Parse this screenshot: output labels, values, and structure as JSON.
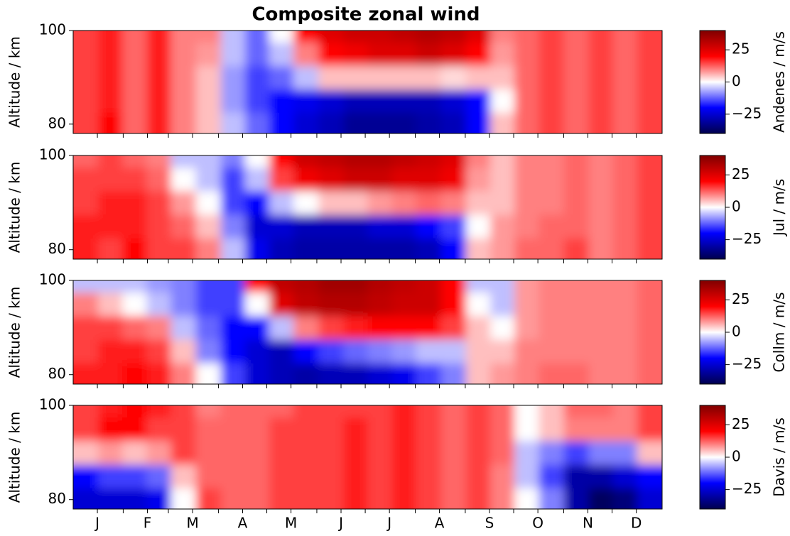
{
  "title": "Composite zonal wind",
  "chart_data": [
    {
      "type": "heatmap",
      "ylabel": "Altitude / km",
      "colorbar_label": "Andenes / m/s",
      "x": [
        8,
        23,
        38,
        53,
        68,
        84,
        99,
        114,
        129,
        144,
        160,
        175,
        190,
        205,
        220,
        236,
        251,
        266,
        281,
        296,
        312,
        327,
        342,
        357
      ],
      "y": [
        80,
        85,
        90,
        95,
        100
      ],
      "z": [
        [
          15,
          20,
          12,
          18,
          10,
          5,
          -5,
          -12,
          -20,
          -25,
          -28,
          -32,
          -32,
          -32,
          -30,
          -28,
          -20,
          5,
          12,
          15,
          12,
          15,
          12,
          15
        ],
        [
          15,
          18,
          12,
          18,
          10,
          5,
          -8,
          -15,
          -20,
          -22,
          -25,
          -28,
          -28,
          -28,
          -28,
          -25,
          -20,
          0,
          12,
          15,
          12,
          15,
          12,
          15
        ],
        [
          15,
          18,
          12,
          18,
          10,
          5,
          -8,
          -15,
          -12,
          -5,
          5,
          5,
          5,
          5,
          5,
          3,
          5,
          5,
          12,
          15,
          12,
          15,
          12,
          15
        ],
        [
          15,
          18,
          12,
          18,
          10,
          8,
          -5,
          -12,
          -5,
          10,
          20,
          22,
          25,
          25,
          28,
          25,
          20,
          8,
          12,
          15,
          12,
          15,
          12,
          15
        ],
        [
          15,
          18,
          12,
          18,
          10,
          10,
          -5,
          -12,
          0,
          20,
          25,
          28,
          28,
          30,
          32,
          30,
          25,
          10,
          12,
          15,
          12,
          15,
          12,
          15
        ]
      ],
      "xlim": [
        0,
        365
      ],
      "ylim": [
        78,
        100
      ],
      "yticks": [
        80,
        100
      ],
      "xticks": [
        15,
        46,
        74,
        105,
        135,
        166,
        196,
        227,
        258,
        288,
        319,
        349
      ],
      "xminorticks": [
        31,
        59,
        90,
        120,
        151,
        181,
        212,
        243,
        273,
        304,
        334
      ],
      "clim": [
        -40,
        40
      ],
      "cticks": [
        {
          "value": -25,
          "label": "−25"
        },
        0,
        25
      ]
    },
    {
      "type": "heatmap",
      "ylabel": "Altitude / km",
      "colorbar_label": "Jul / m/s",
      "x": [
        8,
        23,
        38,
        53,
        68,
        84,
        99,
        114,
        129,
        144,
        160,
        175,
        190,
        205,
        220,
        236,
        251,
        266,
        281,
        296,
        312,
        327,
        342,
        357
      ],
      "y": [
        80,
        85,
        90,
        95,
        100
      ],
      "z": [
        [
          18,
          15,
          20,
          15,
          15,
          10,
          -5,
          -22,
          -28,
          -30,
          -30,
          -30,
          -30,
          -30,
          -28,
          -20,
          5,
          8,
          12,
          12,
          15,
          10,
          12,
          15
        ],
        [
          18,
          18,
          18,
          15,
          12,
          5,
          -10,
          -25,
          -25,
          -28,
          -28,
          -28,
          -25,
          -25,
          -20,
          -15,
          0,
          8,
          10,
          12,
          12,
          10,
          12,
          15
        ],
        [
          15,
          18,
          18,
          15,
          8,
          0,
          -15,
          -20,
          -5,
          0,
          5,
          5,
          8,
          10,
          12,
          10,
          5,
          5,
          10,
          10,
          12,
          10,
          12,
          15
        ],
        [
          15,
          15,
          15,
          12,
          0,
          -5,
          -15,
          -5,
          15,
          22,
          25,
          28,
          28,
          25,
          25,
          22,
          8,
          5,
          10,
          10,
          12,
          10,
          12,
          15
        ],
        [
          12,
          15,
          12,
          10,
          -5,
          -5,
          -10,
          0,
          20,
          28,
          30,
          32,
          32,
          30,
          28,
          25,
          10,
          5,
          10,
          10,
          12,
          10,
          12,
          15
        ]
      ],
      "xlim": [
        0,
        365
      ],
      "ylim": [
        78,
        100
      ],
      "yticks": [
        80,
        100
      ],
      "xticks": [
        15,
        46,
        74,
        105,
        135,
        166,
        196,
        227,
        258,
        288,
        319,
        349
      ],
      "xminorticks": [
        31,
        59,
        90,
        120,
        151,
        181,
        212,
        243,
        273,
        304,
        334
      ],
      "clim": [
        -40,
        40
      ],
      "cticks": [
        {
          "value": -25,
          "label": "−25"
        },
        0,
        25
      ]
    },
    {
      "type": "heatmap",
      "ylabel": "Altitude / km",
      "colorbar_label": "Collm / m/s",
      "x": [
        8,
        23,
        38,
        53,
        68,
        84,
        99,
        114,
        129,
        144,
        160,
        175,
        190,
        205,
        220,
        236,
        251,
        266,
        281,
        296,
        312,
        327,
        342,
        357
      ],
      "y": [
        80,
        85,
        90,
        95,
        100
      ],
      "z": [
        [
          18,
          18,
          20,
          18,
          10,
          0,
          -15,
          -25,
          -28,
          -30,
          -28,
          -28,
          -25,
          -22,
          -15,
          -10,
          5,
          8,
          10,
          12,
          12,
          10,
          10,
          12
        ],
        [
          15,
          18,
          18,
          15,
          5,
          -10,
          -20,
          -25,
          -28,
          -20,
          -15,
          -12,
          -10,
          -8,
          -5,
          -5,
          5,
          5,
          10,
          10,
          10,
          10,
          10,
          12
        ],
        [
          15,
          15,
          12,
          10,
          -5,
          -12,
          -20,
          -20,
          -5,
          10,
          15,
          18,
          20,
          20,
          20,
          15,
          5,
          0,
          8,
          10,
          10,
          10,
          10,
          12
        ],
        [
          10,
          5,
          0,
          -5,
          -10,
          -15,
          -15,
          0,
          25,
          30,
          32,
          32,
          30,
          28,
          28,
          20,
          0,
          -5,
          8,
          10,
          10,
          10,
          10,
          12
        ],
        [
          -5,
          -5,
          -5,
          -8,
          -10,
          -15,
          -15,
          20,
          30,
          32,
          35,
          35,
          32,
          30,
          28,
          20,
          -5,
          -5,
          8,
          10,
          10,
          10,
          10,
          12
        ]
      ],
      "xlim": [
        0,
        365
      ],
      "ylim": [
        78,
        100
      ],
      "yticks": [
        80,
        100
      ],
      "xticks": [
        15,
        46,
        74,
        105,
        135,
        166,
        196,
        227,
        258,
        288,
        319,
        349
      ],
      "xminorticks": [
        31,
        59,
        90,
        120,
        151,
        181,
        212,
        243,
        273,
        304,
        334
      ],
      "clim": [
        -40,
        40
      ],
      "cticks": [
        {
          "value": -25,
          "label": "−25"
        },
        0,
        25
      ]
    },
    {
      "type": "heatmap",
      "ylabel": "Altitude / km",
      "colorbar_label": "Davis / m/s",
      "x": [
        8,
        23,
        38,
        53,
        68,
        84,
        99,
        114,
        129,
        144,
        160,
        175,
        190,
        205,
        220,
        236,
        251,
        266,
        281,
        296,
        312,
        327,
        342,
        357
      ],
      "y": [
        80,
        85,
        90,
        95,
        100
      ],
      "z": [
        [
          -25,
          -25,
          -25,
          -22,
          0,
          15,
          12,
          12,
          15,
          15,
          15,
          18,
          15,
          18,
          15,
          12,
          15,
          10,
          0,
          -10,
          -30,
          -38,
          -35,
          -25
        ],
        [
          -20,
          -15,
          -15,
          -12,
          5,
          12,
          12,
          12,
          15,
          15,
          15,
          18,
          15,
          18,
          15,
          12,
          15,
          10,
          -5,
          -15,
          -30,
          -30,
          -25,
          -20
        ],
        [
          5,
          8,
          5,
          8,
          15,
          12,
          12,
          12,
          15,
          15,
          15,
          18,
          15,
          18,
          15,
          12,
          15,
          12,
          -5,
          -10,
          -15,
          -10,
          -10,
          5
        ],
        [
          15,
          20,
          20,
          15,
          15,
          12,
          12,
          12,
          15,
          15,
          15,
          18,
          15,
          18,
          15,
          12,
          15,
          12,
          0,
          5,
          10,
          10,
          10,
          15
        ],
        [
          15,
          18,
          20,
          18,
          15,
          10,
          12,
          12,
          12,
          15,
          15,
          15,
          15,
          18,
          15,
          12,
          15,
          12,
          0,
          5,
          12,
          12,
          10,
          15
        ]
      ],
      "xlim": [
        0,
        365
      ],
      "ylim": [
        78,
        100
      ],
      "yticks": [
        80,
        100
      ],
      "xticks": [
        {
          "value": 15,
          "label": "J"
        },
        {
          "value": 46,
          "label": "F"
        },
        {
          "value": 74,
          "label": "M"
        },
        {
          "value": 105,
          "label": "A"
        },
        {
          "value": 135,
          "label": "M"
        },
        {
          "value": 166,
          "label": "J"
        },
        {
          "value": 196,
          "label": "J"
        },
        {
          "value": 227,
          "label": "A"
        },
        {
          "value": 258,
          "label": "S"
        },
        {
          "value": 288,
          "label": "O"
        },
        {
          "value": 319,
          "label": "N"
        },
        {
          "value": 349,
          "label": "D"
        }
      ],
      "xminorticks": [
        31,
        59,
        90,
        120,
        151,
        181,
        212,
        243,
        273,
        304,
        334
      ],
      "clim": [
        -40,
        40
      ],
      "cticks": [
        {
          "value": -25,
          "label": "−25"
        },
        0,
        25
      ]
    }
  ]
}
